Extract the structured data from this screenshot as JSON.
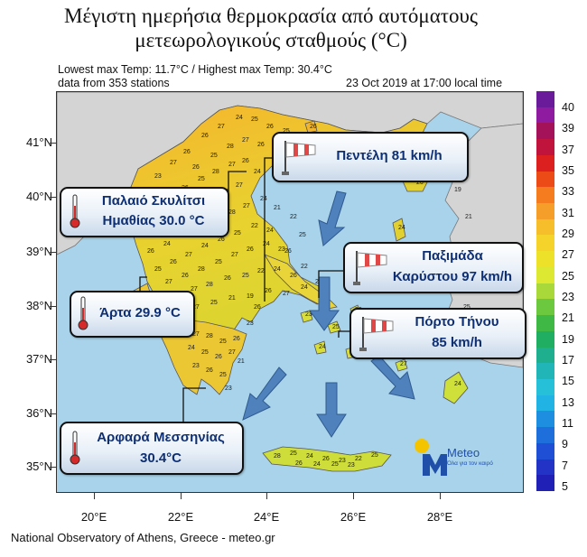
{
  "title_line1": "Μέγιστη ημερήσια θερμοκρασία από αυτόματους",
  "title_line2": "μετεωρολογικούς σταθμούς (°C)",
  "subtitle_left_1": "Lowest max Temp: 11.7°C / Highest max Temp: 30.4°C",
  "subtitle_left_2": "data from 353 stations",
  "subtitle_right": "23 Oct 2019 at 17:00 local time",
  "footer": "National Observatory of Athens, Greece - meteo.gr",
  "logo": {
    "name": "Meteo",
    "tagline": "Όλα για τον καιρό",
    "brand_color": "#1f4fa8",
    "sun_color": "#f5c400"
  },
  "axes": {
    "lat_labels": [
      "41°N",
      "40°N",
      "39°N",
      "38°N",
      "37°N",
      "36°N",
      "35°N"
    ],
    "lon_labels": [
      "20°E",
      "22°E",
      "24°E",
      "26°E",
      "28°E"
    ]
  },
  "colorbar": {
    "labels": [
      "40",
      "39",
      "37",
      "35",
      "33",
      "31",
      "29",
      "27",
      "25",
      "23",
      "21",
      "19",
      "17",
      "15",
      "13",
      "11",
      "9",
      "7",
      "5"
    ],
    "colors": [
      "#6a1b9a",
      "#8e1ba0",
      "#a4125a",
      "#c0143c",
      "#dc1f1f",
      "#ec4a17",
      "#f57c1f",
      "#f59e2a",
      "#f5be2a",
      "#f5d32a",
      "#eee12a",
      "#dde832",
      "#a8d83a",
      "#6cc83e",
      "#3fb845",
      "#1fae62",
      "#1fae8e",
      "#21b5b8",
      "#26c0d8",
      "#21b3e3",
      "#1e8fe0",
      "#1e6fdc",
      "#1f4fd4",
      "#2233c6",
      "#2020b6"
    ]
  },
  "stations": [
    {
      "name": "Παλαιό Σκυλίτσι",
      "detail": "Ημαθίας 30.0 °C",
      "type": "temperature"
    },
    {
      "name": "Άρτα 29.9 °C",
      "detail": "",
      "type": "temperature"
    },
    {
      "name": "Αρφαρά Μεσσηνίας",
      "detail": "30.4°C",
      "type": "temperature"
    },
    {
      "name": "Πεντέλη 81 km/h",
      "detail": "",
      "type": "wind"
    },
    {
      "name": "Παξιμάδα",
      "detail": "Καρύστου 97 km/h",
      "type": "wind"
    },
    {
      "name": "Πόρτο Τήνου",
      "detail": "85 km/h",
      "type": "wind"
    }
  ],
  "station_values": [
    "23",
    "27",
    "26",
    "26",
    "27",
    "24",
    "25",
    "26",
    "25",
    "27",
    "26",
    "25",
    "28",
    "27",
    "26",
    "25",
    "24",
    "23",
    "27",
    "26",
    "25",
    "28",
    "27",
    "26",
    "24",
    "25",
    "23",
    "27",
    "26",
    "25",
    "28",
    "27",
    "26",
    "24",
    "25",
    "27",
    "26",
    "28",
    "27",
    "25",
    "26",
    "27",
    "24",
    "26",
    "25",
    "22",
    "27",
    "26",
    "28",
    "25",
    "27",
    "26",
    "24",
    "23",
    "25",
    "27",
    "28",
    "26",
    "25",
    "22",
    "24",
    "26",
    "27",
    "25",
    "21",
    "19",
    "26",
    "27",
    "24",
    "25",
    "27",
    "28",
    "25",
    "26",
    "24",
    "25",
    "26",
    "27",
    "23",
    "26",
    "25",
    "24",
    "26",
    "27",
    "25",
    "26",
    "24",
    "25",
    "24",
    "26",
    "23",
    "25",
    "26",
    "24",
    "25",
    "26",
    "24",
    "27",
    "28",
    "25",
    "24",
    "26",
    "23",
    "22",
    "25",
    "26",
    "24",
    "25",
    "23",
    "24",
    "26",
    "22",
    "25",
    "26",
    "23",
    "24",
    "21",
    "22",
    "25",
    "22",
    "18",
    "19",
    "21",
    "23",
    "25",
    "24",
    "22",
    "21",
    "23",
    "25"
  ]
}
